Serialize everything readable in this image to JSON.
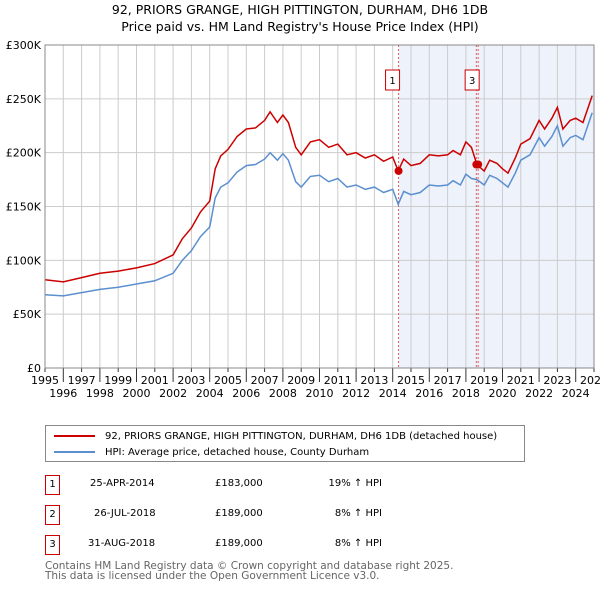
{
  "chart_data": {
    "type": "line",
    "title": "92, PRIORS GRANGE, HIGH PITTINGTON, DURHAM, DH6 1DB",
    "subtitle": "Price paid vs. HM Land Registry's House Price Index (HPI)",
    "xlim": [
      1995,
      2025
    ],
    "ylim": [
      0,
      300000
    ],
    "x_ticks": [
      "1995",
      "1996",
      "1997",
      "1998",
      "1999",
      "2000",
      "2001",
      "2002",
      "2003",
      "2004",
      "2005",
      "2006",
      "2007",
      "2008",
      "2009",
      "2010",
      "2011",
      "2012",
      "2013",
      "2014",
      "2015",
      "2016",
      "2017",
      "2018",
      "2019",
      "2020",
      "2021",
      "2022",
      "2023",
      "2024",
      "2025"
    ],
    "y_ticks": [
      {
        "v": 0,
        "label": "£0"
      },
      {
        "v": 50000,
        "label": "£50K"
      },
      {
        "v": 100000,
        "label": "£100K"
      },
      {
        "v": 150000,
        "label": "£150K"
      },
      {
        "v": 200000,
        "label": "£200K"
      },
      {
        "v": 250000,
        "label": "£250K"
      },
      {
        "v": 300000,
        "label": "£300K"
      }
    ],
    "series": [
      {
        "name": "92, PRIORS GRANGE, HIGH PITTINGTON, DURHAM, DH6 1DB (detached house)",
        "color": "#cc0000",
        "x": [
          1995,
          1996,
          1997,
          1998,
          1999,
          2000,
          2001,
          2002,
          2002.5,
          2003,
          2003.5,
          2004,
          2004.3,
          2004.6,
          2005,
          2005.5,
          2006,
          2006.5,
          2007,
          2007.3,
          2007.7,
          2008,
          2008.3,
          2008.7,
          2009,
          2009.5,
          2010,
          2010.5,
          2011,
          2011.5,
          2012,
          2012.5,
          2013,
          2013.5,
          2014,
          2014.3,
          2014.6,
          2015,
          2015.5,
          2016,
          2016.5,
          2017,
          2017.3,
          2017.7,
          2018,
          2018.3,
          2018.6,
          2019,
          2019.3,
          2019.7,
          2020,
          2020.3,
          2020.7,
          2021,
          2021.5,
          2022,
          2022.3,
          2022.7,
          2023,
          2023.3,
          2023.7,
          2024,
          2024.4,
          2024.9
        ],
        "values": [
          82000,
          80000,
          84000,
          88000,
          90000,
          93000,
          97000,
          105000,
          120000,
          130000,
          145000,
          155000,
          185000,
          197000,
          203000,
          215000,
          222000,
          223000,
          230000,
          238000,
          228000,
          235000,
          228000,
          205000,
          198000,
          210000,
          212000,
          205000,
          208000,
          198000,
          200000,
          195000,
          198000,
          192000,
          196000,
          183000,
          194000,
          188000,
          190000,
          198000,
          197000,
          198000,
          202000,
          198000,
          210000,
          205000,
          189000,
          183000,
          193000,
          190000,
          185000,
          181000,
          195000,
          208000,
          213000,
          230000,
          222000,
          232000,
          242000,
          222000,
          230000,
          232000,
          228000,
          253000
        ]
      },
      {
        "name": "HPI: Average price, detached house, County Durham",
        "color": "#5b8fd0",
        "x": [
          1995,
          1996,
          1997,
          1998,
          1999,
          2000,
          2001,
          2002,
          2002.5,
          2003,
          2003.5,
          2004,
          2004.3,
          2004.6,
          2005,
          2005.5,
          2006,
          2006.5,
          2007,
          2007.3,
          2007.7,
          2008,
          2008.3,
          2008.7,
          2009,
          2009.5,
          2010,
          2010.5,
          2011,
          2011.5,
          2012,
          2012.5,
          2013,
          2013.5,
          2014,
          2014.3,
          2014.6,
          2015,
          2015.5,
          2016,
          2016.5,
          2017,
          2017.3,
          2017.7,
          2018,
          2018.3,
          2018.6,
          2019,
          2019.3,
          2019.7,
          2020,
          2020.3,
          2020.7,
          2021,
          2021.5,
          2022,
          2022.3,
          2022.7,
          2023,
          2023.3,
          2023.7,
          2024,
          2024.4,
          2024.9
        ],
        "values": [
          68000,
          67000,
          70000,
          73000,
          75000,
          78000,
          81000,
          88000,
          100000,
          109000,
          122000,
          131000,
          158000,
          168000,
          172000,
          182000,
          188000,
          189000,
          194000,
          200000,
          193000,
          199000,
          193000,
          173000,
          168000,
          178000,
          179000,
          173000,
          176000,
          168000,
          170000,
          166000,
          168000,
          163000,
          166000,
          152000,
          164000,
          161000,
          163000,
          170000,
          169000,
          170000,
          174000,
          170000,
          180000,
          176000,
          175000,
          170000,
          179000,
          176000,
          172000,
          168000,
          181000,
          193000,
          198000,
          214000,
          206000,
          215000,
          225000,
          206000,
          214000,
          216000,
          212000,
          237000
        ]
      }
    ],
    "sales": [
      {
        "n": "1",
        "x": 2014.32,
        "value": 183000
      },
      {
        "n": "2",
        "x": 2018.57,
        "value": 189000
      },
      {
        "n": "3",
        "x": 2018.67,
        "value": 189000
      }
    ]
  },
  "legend": {
    "property": "92, PRIORS GRANGE, HIGH PITTINGTON, DURHAM, DH6 1DB (detached house)",
    "hpi": "HPI: Average price, detached house, County Durham"
  },
  "table": [
    {
      "n": "1",
      "date": "25-APR-2014",
      "price": "£183,000",
      "hpi": "19% ↑ HPI"
    },
    {
      "n": "2",
      "date": "26-JUL-2018",
      "price": "£189,000",
      "hpi": "8% ↑ HPI"
    },
    {
      "n": "3",
      "date": "31-AUG-2018",
      "price": "£189,000",
      "hpi": "8% ↑ HPI"
    }
  ],
  "footer": {
    "line1": "Contains HM Land Registry data © Crown copyright and database right 2025.",
    "line2": "This data is licensed under the Open Government Licence v3.0."
  }
}
